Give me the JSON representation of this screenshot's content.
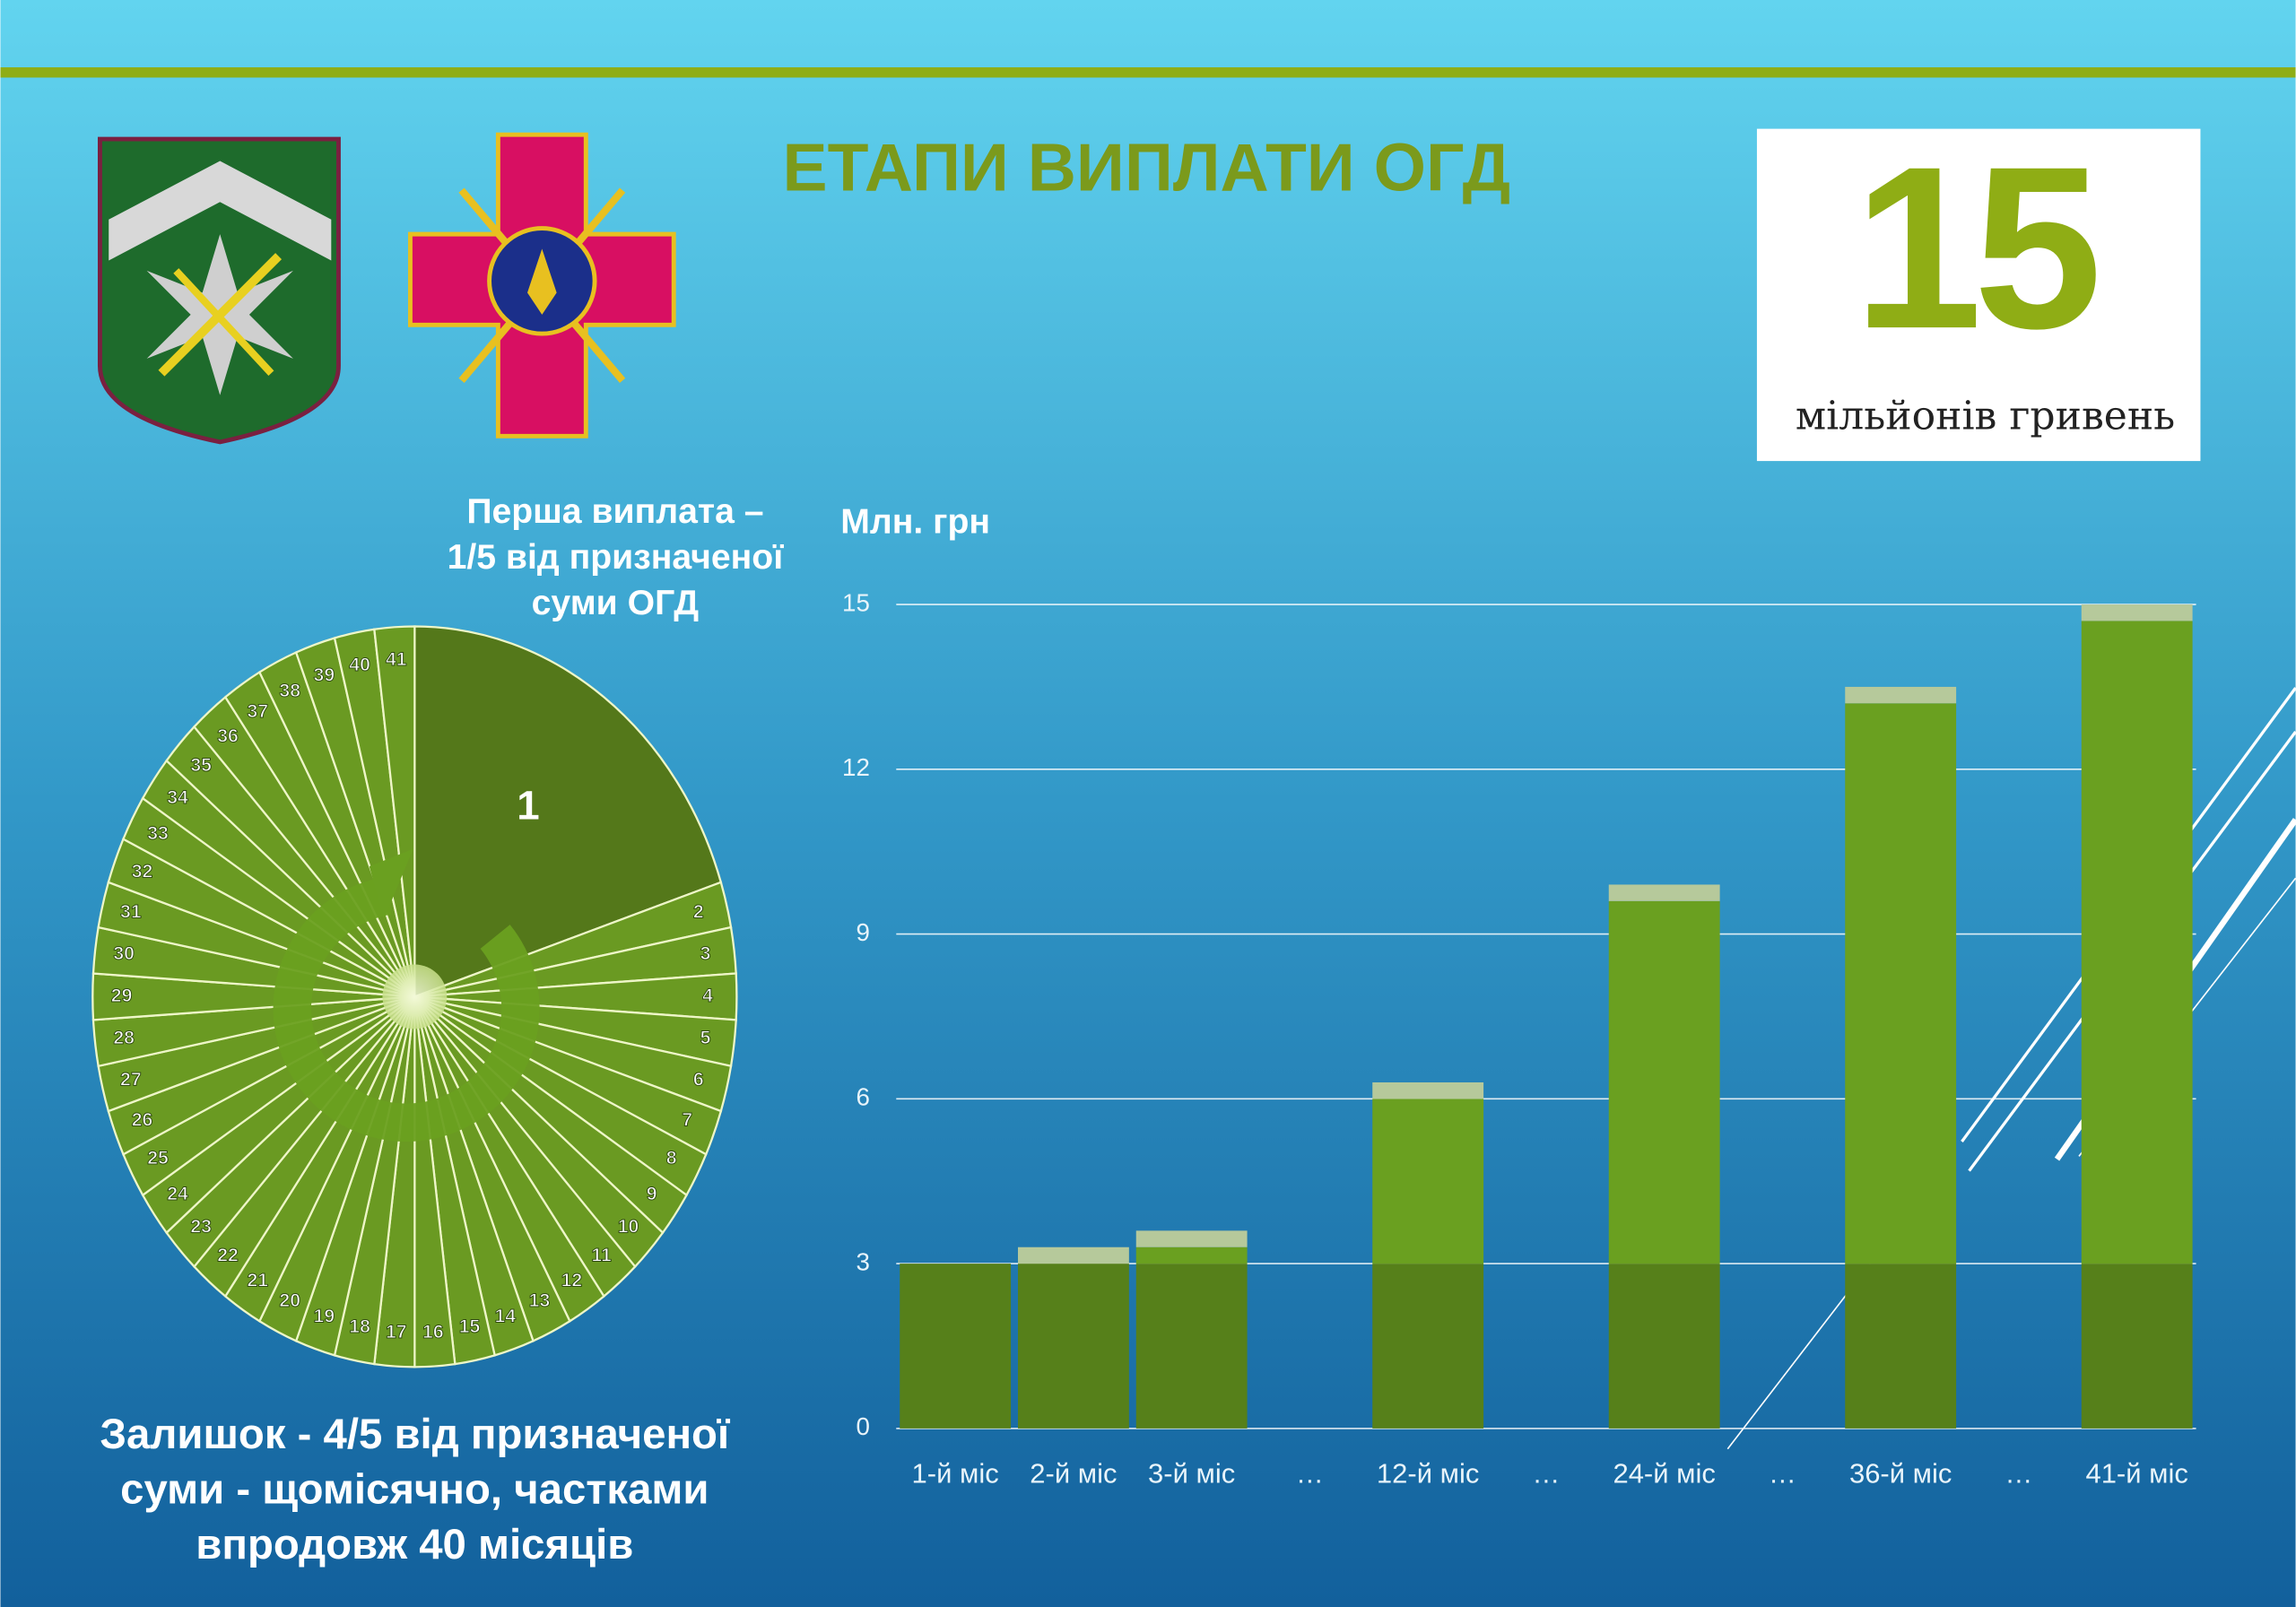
{
  "title": "ЕТАПИ ВИПЛАТИ ОГД",
  "badge": {
    "number": "15",
    "text": "мільйонів гривень"
  },
  "chart_data": [
    {
      "type": "pie",
      "annotations": [
        [
          "Перша виплата –",
          "1/5 від призначеної",
          "суми ОГД"
        ],
        [
          "Залишок - 4/5 від призначеної",
          "суми - щомісячно, частками",
          "впродовж 40 місяців"
        ]
      ],
      "categories": [
        "1",
        "2",
        "3",
        "4",
        "5",
        "6",
        "7",
        "8",
        "9",
        "10",
        "11",
        "12",
        "13",
        "14",
        "15",
        "16",
        "17",
        "18",
        "19",
        "20",
        "21",
        "22",
        "23",
        "24",
        "25",
        "26",
        "27",
        "28",
        "29",
        "30",
        "31",
        "32",
        "33",
        "34",
        "35",
        "36",
        "37",
        "38",
        "39",
        "40",
        "41"
      ],
      "values": [
        20,
        2,
        2,
        2,
        2,
        2,
        2,
        2,
        2,
        2,
        2,
        2,
        2,
        2,
        2,
        2,
        2,
        2,
        2,
        2,
        2,
        2,
        2,
        2,
        2,
        2,
        2,
        2,
        2,
        2,
        2,
        2,
        2,
        2,
        2,
        2,
        2,
        2,
        2,
        2,
        2
      ],
      "colors": [
        "#54781a",
        "#6a9a22"
      ]
    },
    {
      "type": "bar",
      "stacked": true,
      "ylabel": "Млн. грн",
      "categories": [
        "1-й міс",
        "2-й міс",
        "3-й міс",
        "…",
        "12-й міс",
        "…",
        "24-й міс",
        "…",
        "36-й міс",
        "…",
        "41-й міс"
      ],
      "series": [
        {
          "color": "#56801a",
          "values": [
            3,
            3,
            3,
            null,
            3,
            null,
            3,
            null,
            3,
            null,
            3
          ]
        },
        {
          "color": "#6aa020",
          "values": [
            0,
            0,
            0.3,
            null,
            3,
            null,
            6.6,
            null,
            10.2,
            null,
            11.7
          ]
        },
        {
          "color": "#b6c99b",
          "values": [
            0,
            0.3,
            0.3,
            null,
            0.3,
            null,
            0.3,
            null,
            0.3,
            null,
            0.3
          ]
        }
      ],
      "ylim": [
        0,
        15
      ],
      "yticks": [
        0,
        3,
        6,
        9,
        12,
        15
      ],
      "grid": true
    }
  ]
}
